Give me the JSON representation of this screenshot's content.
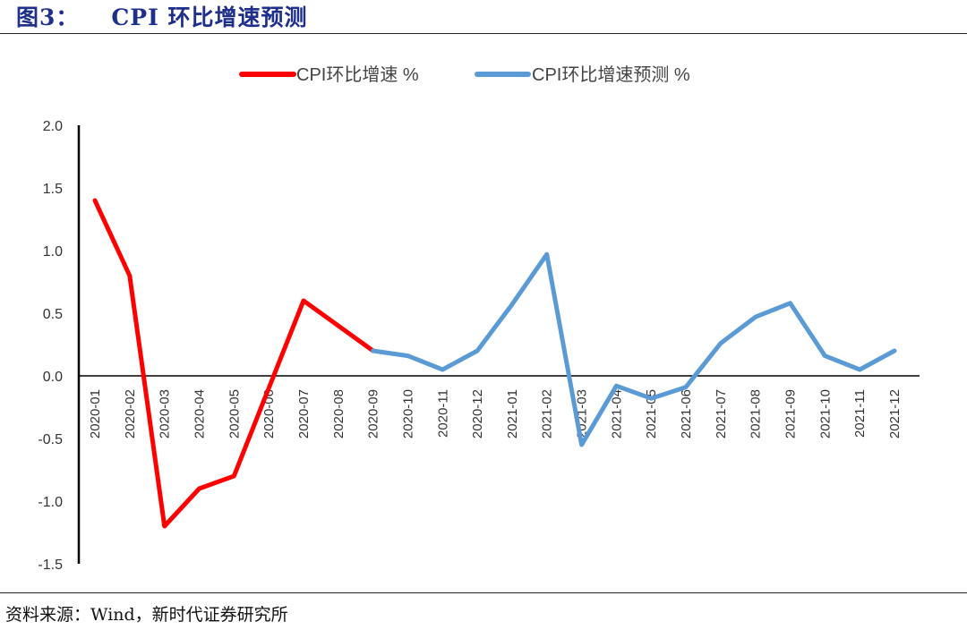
{
  "figure": {
    "label": "图3：",
    "title": "CPI 环比增速预测",
    "source": "资料来源：Wind，新时代证券研究所"
  },
  "chart_data": {
    "type": "line",
    "title": "CPI 环比增速预测",
    "x": [
      "2020-01",
      "2020-02",
      "2020-03",
      "2020-04",
      "2020-05",
      "2020-06",
      "2020-07",
      "2020-08",
      "2020-09",
      "2020-10",
      "2020-11",
      "2020-12",
      "2021-01",
      "2021-02",
      "2021-03",
      "2021-04",
      "2021-05",
      "2021-06",
      "2021-07",
      "2021-08",
      "2021-09",
      "2021-10",
      "2021-11",
      "2021-12"
    ],
    "ylim": [
      -1.5,
      2.0
    ],
    "yticks": [
      "2.0",
      "1.5",
      "1.0",
      "0.5",
      "0.0",
      "-0.5",
      "-1.0",
      "-1.5"
    ],
    "legend_position": "top",
    "grid": false,
    "series": [
      {
        "name": "CPI环比增速 %",
        "color": "#ff0000",
        "values": [
          1.4,
          0.8,
          -1.2,
          -0.9,
          -0.8,
          -0.1,
          0.6,
          0.4,
          0.2,
          null,
          null,
          null,
          null,
          null,
          null,
          null,
          null,
          null,
          null,
          null,
          null,
          null,
          null,
          null
        ]
      },
      {
        "name": "CPI环比增速预测 %",
        "color": "#5b9bd5",
        "values": [
          null,
          null,
          null,
          null,
          null,
          null,
          null,
          null,
          0.2,
          0.16,
          0.05,
          0.2,
          0.57,
          0.97,
          -0.55,
          -0.08,
          -0.18,
          -0.09,
          0.26,
          0.47,
          0.58,
          0.16,
          0.05,
          0.2
        ]
      }
    ]
  }
}
